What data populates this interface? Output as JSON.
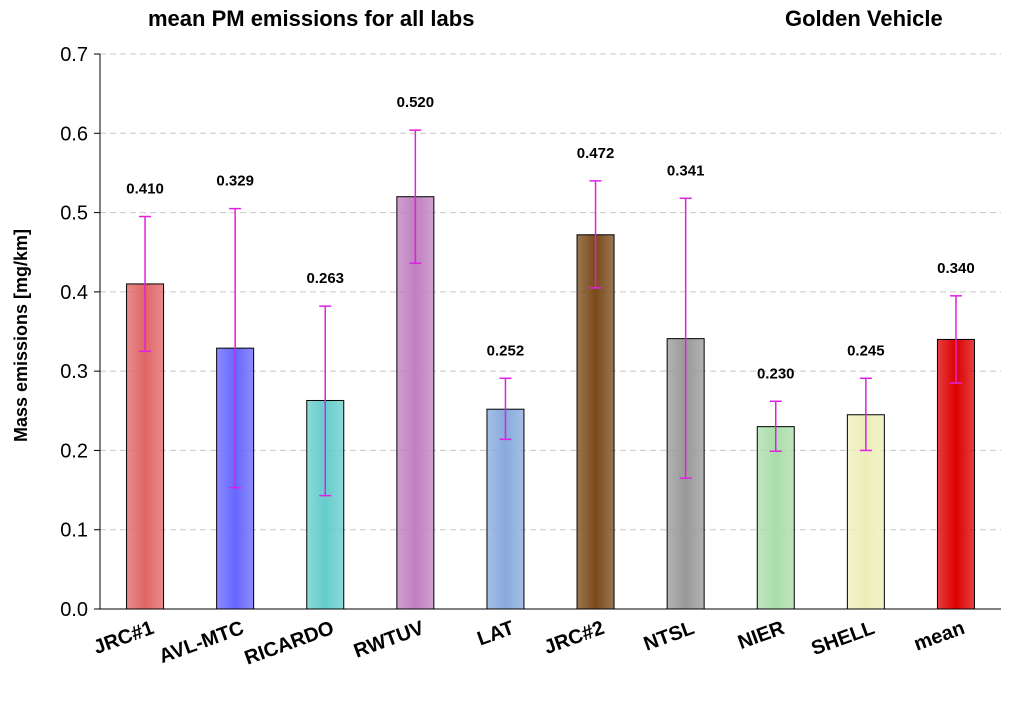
{
  "chart_data": {
    "type": "bar",
    "title": "mean PM emissions for all labs",
    "subtitle": "Golden Vehicle",
    "xlabel": "",
    "ylabel": "Mass emissions [mg/km]",
    "ylim": [
      0,
      0.7
    ],
    "yticks": [
      "0.0",
      "0.1",
      "0.2",
      "0.3",
      "0.4",
      "0.5",
      "0.6",
      "0.7"
    ],
    "grid": true,
    "categories": [
      "JRC#1",
      "AVL-MTC",
      "RICARDO",
      "RWTUV",
      "LAT",
      "JRC#2",
      "NTSL",
      "NIER",
      "SHELL",
      "mean"
    ],
    "values": [
      0.41,
      0.329,
      0.263,
      0.52,
      0.252,
      0.472,
      0.341,
      0.23,
      0.245,
      0.34
    ],
    "value_labels": [
      "0.410",
      "0.329",
      "0.263",
      "0.520",
      "0.252",
      "0.472",
      "0.341",
      "0.230",
      "0.245",
      "0.340"
    ],
    "error_low": [
      0.325,
      0.153,
      0.143,
      0.436,
      0.214,
      0.405,
      0.165,
      0.199,
      0.2,
      0.285
    ],
    "error_high": [
      0.495,
      0.505,
      0.382,
      0.604,
      0.291,
      0.54,
      0.518,
      0.262,
      0.291,
      0.395
    ],
    "colors": [
      "#e06666",
      "#6666ff",
      "#66cccc",
      "#c080c0",
      "#88aadd",
      "#7a4a1a",
      "#999999",
      "#aaddaa",
      "#eeeebb",
      "#dd0000"
    ],
    "error_bar_color": "#e020e0"
  }
}
